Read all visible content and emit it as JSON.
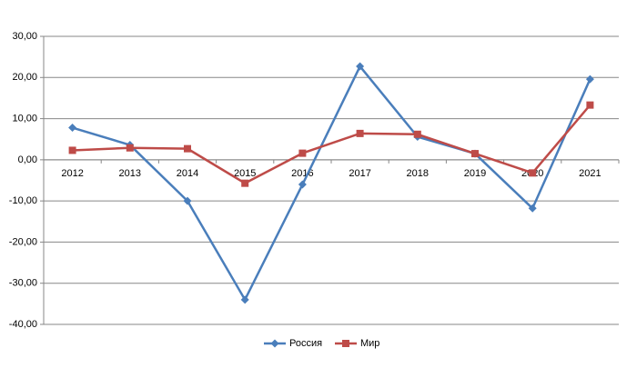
{
  "chart_data": {
    "type": "line",
    "title": "",
    "xlabel": "",
    "ylabel": "",
    "categories": [
      "2012",
      "2013",
      "2014",
      "2015",
      "2016",
      "2017",
      "2018",
      "2019",
      "2020",
      "2021"
    ],
    "ylim": [
      -40,
      30
    ],
    "y_ticks": [
      30,
      20,
      10,
      0,
      -10,
      -20,
      -30,
      -40
    ],
    "y_tick_labels": [
      "30,00",
      "20,00",
      "10,00",
      "0,00",
      "-10,00",
      "-20,00",
      "-30,00",
      "-40,00"
    ],
    "grid": true,
    "legend_position": "bottom",
    "series": [
      {
        "name": "Россия",
        "color": "#4A7EBB",
        "marker": "diamond",
        "values": [
          7.8,
          3.6,
          -10.0,
          -34.0,
          -6.0,
          22.7,
          5.6,
          1.5,
          -11.8,
          19.6
        ]
      },
      {
        "name": "Мир",
        "color": "#BE4B48",
        "marker": "square",
        "values": [
          2.3,
          2.9,
          2.7,
          -5.7,
          1.6,
          6.4,
          6.2,
          1.5,
          -3.2,
          13.3
        ]
      }
    ]
  }
}
